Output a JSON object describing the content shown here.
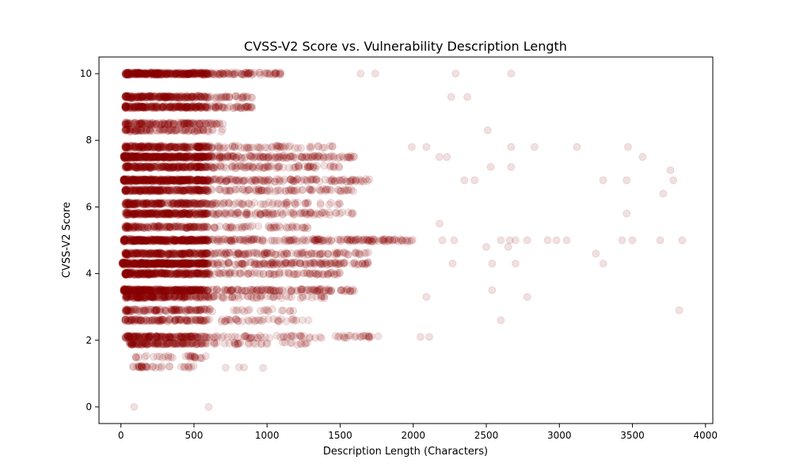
{
  "chart_data": {
    "type": "scatter",
    "title": "CVSS-V2 Score vs. Vulnerability Description Length",
    "xlabel": "Description Length (Characters)",
    "ylabel": "CVSS-V2 Score",
    "xlim": [
      -150,
      4050
    ],
    "ylim": [
      -0.5,
      10.5
    ],
    "x_ticks": [
      0,
      500,
      1000,
      1500,
      2000,
      2500,
      3000,
      3500,
      4000
    ],
    "y_ticks": [
      0,
      2,
      4,
      6,
      8,
      10
    ],
    "grid": false,
    "point_color": "#8b0000",
    "point_alpha": 0.12,
    "bands": [
      {
        "y": 10.0,
        "x_min": 30,
        "x_max": 1100,
        "density": 260
      },
      {
        "y": 9.3,
        "x_min": 30,
        "x_max": 900,
        "density": 160
      },
      {
        "y": 9.0,
        "x_min": 30,
        "x_max": 900,
        "density": 180
      },
      {
        "y": 8.5,
        "x_min": 30,
        "x_max": 700,
        "density": 90
      },
      {
        "y": 8.3,
        "x_min": 30,
        "x_max": 700,
        "density": 70
      },
      {
        "y": 7.8,
        "x_min": 30,
        "x_max": 1500,
        "density": 180
      },
      {
        "y": 7.5,
        "x_min": 20,
        "x_max": 1600,
        "density": 320
      },
      {
        "y": 7.2,
        "x_min": 30,
        "x_max": 1500,
        "density": 200
      },
      {
        "y": 6.8,
        "x_min": 20,
        "x_max": 1700,
        "density": 320
      },
      {
        "y": 6.5,
        "x_min": 30,
        "x_max": 1600,
        "density": 200
      },
      {
        "y": 6.1,
        "x_min": 30,
        "x_max": 1500,
        "density": 170
      },
      {
        "y": 5.8,
        "x_min": 30,
        "x_max": 1600,
        "density": 220
      },
      {
        "y": 5.4,
        "x_min": 30,
        "x_max": 1300,
        "density": 130
      },
      {
        "y": 5.0,
        "x_min": 20,
        "x_max": 2000,
        "density": 340
      },
      {
        "y": 4.6,
        "x_min": 30,
        "x_max": 1700,
        "density": 220
      },
      {
        "y": 4.3,
        "x_min": 10,
        "x_max": 1700,
        "density": 330
      },
      {
        "y": 4.0,
        "x_min": 30,
        "x_max": 1500,
        "density": 230
      },
      {
        "y": 3.5,
        "x_min": 20,
        "x_max": 1600,
        "density": 280
      },
      {
        "y": 3.3,
        "x_min": 30,
        "x_max": 1400,
        "density": 160
      },
      {
        "y": 2.9,
        "x_min": 30,
        "x_max": 1200,
        "density": 90
      },
      {
        "y": 2.6,
        "x_min": 30,
        "x_max": 1300,
        "density": 100
      },
      {
        "y": 2.1,
        "x_min": 30,
        "x_max": 1800,
        "density": 160
      },
      {
        "y": 1.9,
        "x_min": 60,
        "x_max": 1300,
        "density": 110
      },
      {
        "y": 1.5,
        "x_min": 100,
        "x_max": 600,
        "density": 20
      },
      {
        "y": 1.2,
        "x_min": 120,
        "x_max": 1000,
        "density": 25
      }
    ],
    "outliers": [
      {
        "x": 90,
        "y": 0.0
      },
      {
        "x": 600,
        "y": 0.0
      },
      {
        "x": 2290,
        "y": 10.0
      },
      {
        "x": 2670,
        "y": 10.0
      },
      {
        "x": 1640,
        "y": 10.0
      },
      {
        "x": 1740,
        "y": 10.0
      },
      {
        "x": 2260,
        "y": 9.3
      },
      {
        "x": 2370,
        "y": 9.3
      },
      {
        "x": 2510,
        "y": 8.3
      },
      {
        "x": 2670,
        "y": 7.8
      },
      {
        "x": 2830,
        "y": 7.8
      },
      {
        "x": 3120,
        "y": 7.8
      },
      {
        "x": 3470,
        "y": 7.8
      },
      {
        "x": 1990,
        "y": 7.8
      },
      {
        "x": 2090,
        "y": 7.8
      },
      {
        "x": 3570,
        "y": 7.5
      },
      {
        "x": 2230,
        "y": 7.5
      },
      {
        "x": 2180,
        "y": 7.5
      },
      {
        "x": 2530,
        "y": 7.2
      },
      {
        "x": 2670,
        "y": 7.2
      },
      {
        "x": 3760,
        "y": 7.1
      },
      {
        "x": 3300,
        "y": 6.8
      },
      {
        "x": 3460,
        "y": 6.8
      },
      {
        "x": 3780,
        "y": 6.8
      },
      {
        "x": 2350,
        "y": 6.8
      },
      {
        "x": 2420,
        "y": 6.8
      },
      {
        "x": 3710,
        "y": 6.4
      },
      {
        "x": 3460,
        "y": 5.8
      },
      {
        "x": 2180,
        "y": 5.5
      },
      {
        "x": 2600,
        "y": 5.0
      },
      {
        "x": 2660,
        "y": 5.0
      },
      {
        "x": 2700,
        "y": 5.0
      },
      {
        "x": 2780,
        "y": 5.0
      },
      {
        "x": 2920,
        "y": 5.0
      },
      {
        "x": 2980,
        "y": 5.0
      },
      {
        "x": 3050,
        "y": 5.0
      },
      {
        "x": 3430,
        "y": 5.0
      },
      {
        "x": 3500,
        "y": 5.0
      },
      {
        "x": 3690,
        "y": 5.0
      },
      {
        "x": 3840,
        "y": 5.0
      },
      {
        "x": 2200,
        "y": 5.0
      },
      {
        "x": 2280,
        "y": 5.0
      },
      {
        "x": 2500,
        "y": 4.8
      },
      {
        "x": 2650,
        "y": 4.8
      },
      {
        "x": 3250,
        "y": 4.6
      },
      {
        "x": 2270,
        "y": 4.3
      },
      {
        "x": 2540,
        "y": 4.3
      },
      {
        "x": 2700,
        "y": 4.3
      },
      {
        "x": 3300,
        "y": 4.3
      },
      {
        "x": 2540,
        "y": 3.5
      },
      {
        "x": 2780,
        "y": 3.3
      },
      {
        "x": 2090,
        "y": 3.3
      },
      {
        "x": 3820,
        "y": 2.9
      },
      {
        "x": 2600,
        "y": 2.6
      },
      {
        "x": 2110,
        "y": 2.1
      },
      {
        "x": 2050,
        "y": 2.1
      }
    ]
  }
}
